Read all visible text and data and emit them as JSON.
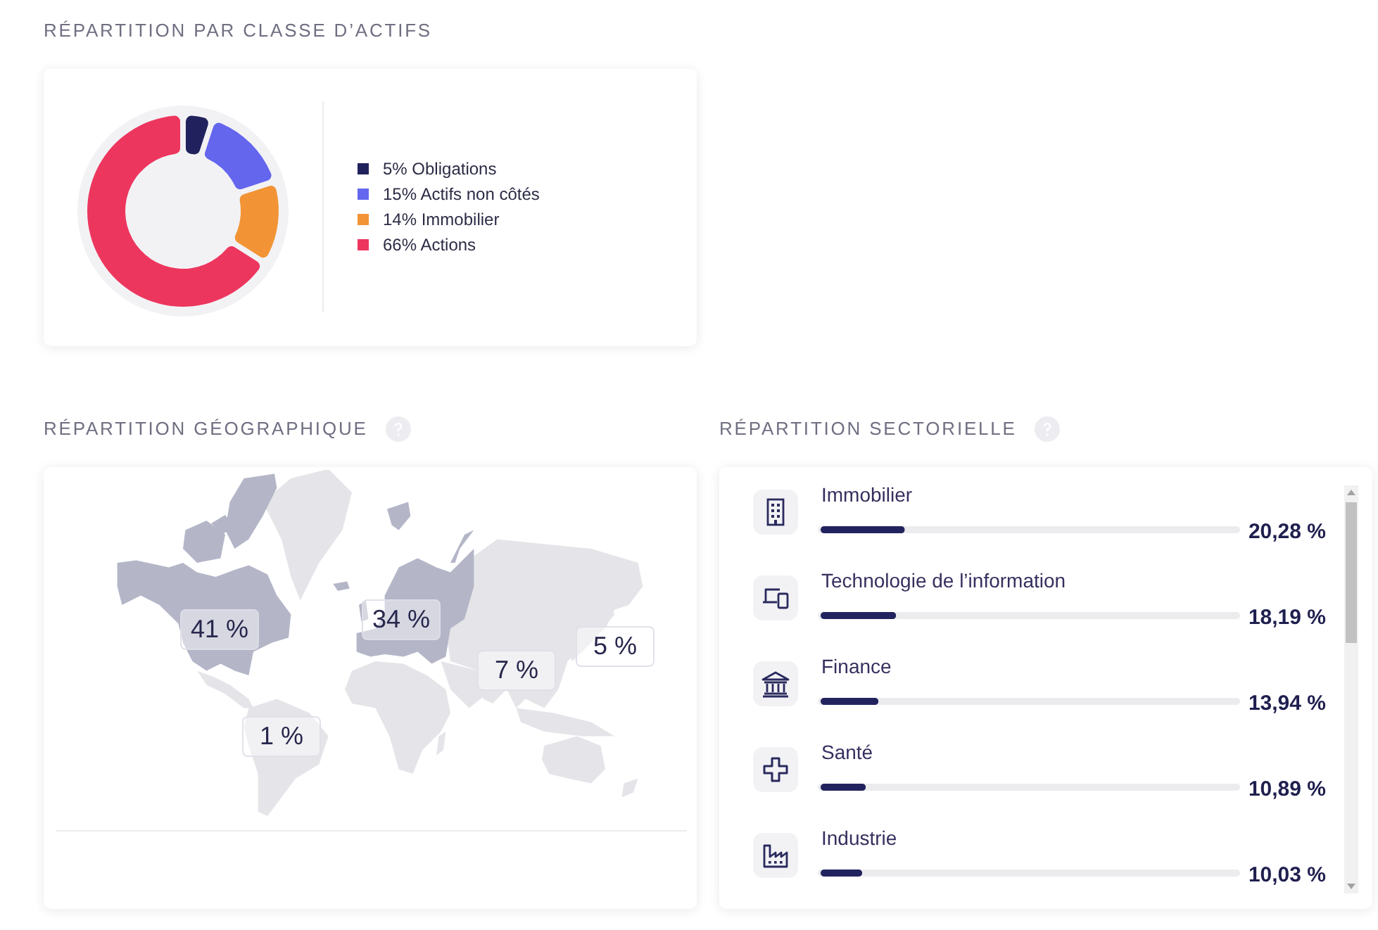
{
  "chart_data": [
    {
      "type": "donut",
      "title": "RÉPARTITION PAR CLASSE D’ACTIFS",
      "categories": [
        "Obligations",
        "Actifs non côtés",
        "Immobilier",
        "Actions"
      ],
      "values": [
        5,
        15,
        14,
        66
      ],
      "value_labels": [
        "5%",
        "15%",
        "14%",
        "66%"
      ],
      "colors": [
        "#21225d",
        "#6466ee",
        "#f29435",
        "#ed365e"
      ],
      "legend": "right"
    },
    {
      "type": "other",
      "title": "RÉPARTITION GÉOGRAPHIQUE",
      "values": [
        41,
        34,
        7,
        5,
        1
      ],
      "value_labels": [
        "41 %",
        "34 %",
        "7 %",
        "5 %",
        "1 %"
      ]
    },
    {
      "type": "bar",
      "orientation": "horizontal",
      "title": "RÉPARTITION SECTORIELLE",
      "categories": [
        "Immobilier",
        "Technologie de l’information",
        "Finance",
        "Santé",
        "Industrie"
      ],
      "values": [
        20.28,
        18.19,
        13.94,
        10.89,
        10.03
      ],
      "value_labels": [
        "20,28 %",
        "18,19 %",
        "13,94 %",
        "10,89 %",
        "10,03 %"
      ],
      "color": "#22235e",
      "xlim": [
        0,
        100
      ],
      "grid": "y",
      "tick_labels": "y"
    }
  ]
}
